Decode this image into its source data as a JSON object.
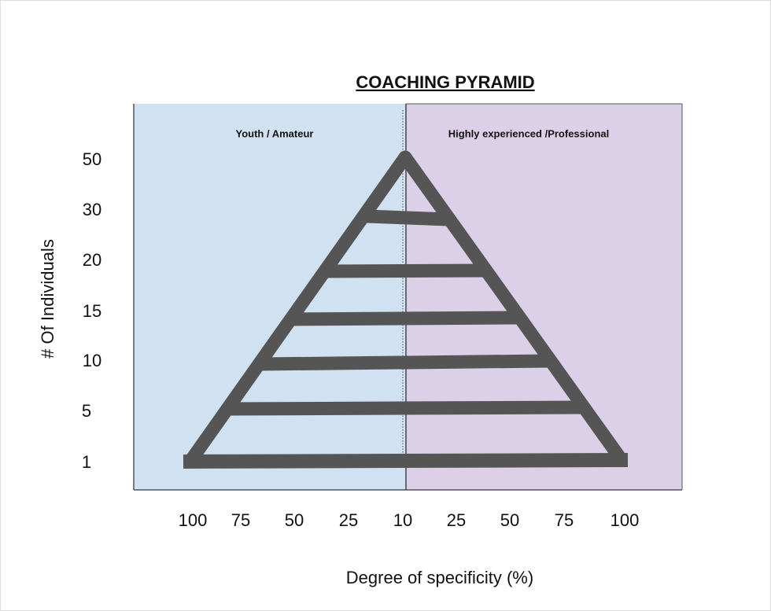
{
  "title": "COACHING PYRAMID",
  "regions": {
    "left": "Youth / Amateur",
    "right": "Highly experienced /Professional"
  },
  "y_axis": {
    "label": "# Of Individuals",
    "ticks": [
      50,
      30,
      20,
      15,
      10,
      5,
      1
    ]
  },
  "x_axis": {
    "label": "Degree of specificity (%)",
    "ticks": [
      100,
      75,
      50,
      25,
      10,
      25,
      50,
      75,
      100
    ]
  }
}
